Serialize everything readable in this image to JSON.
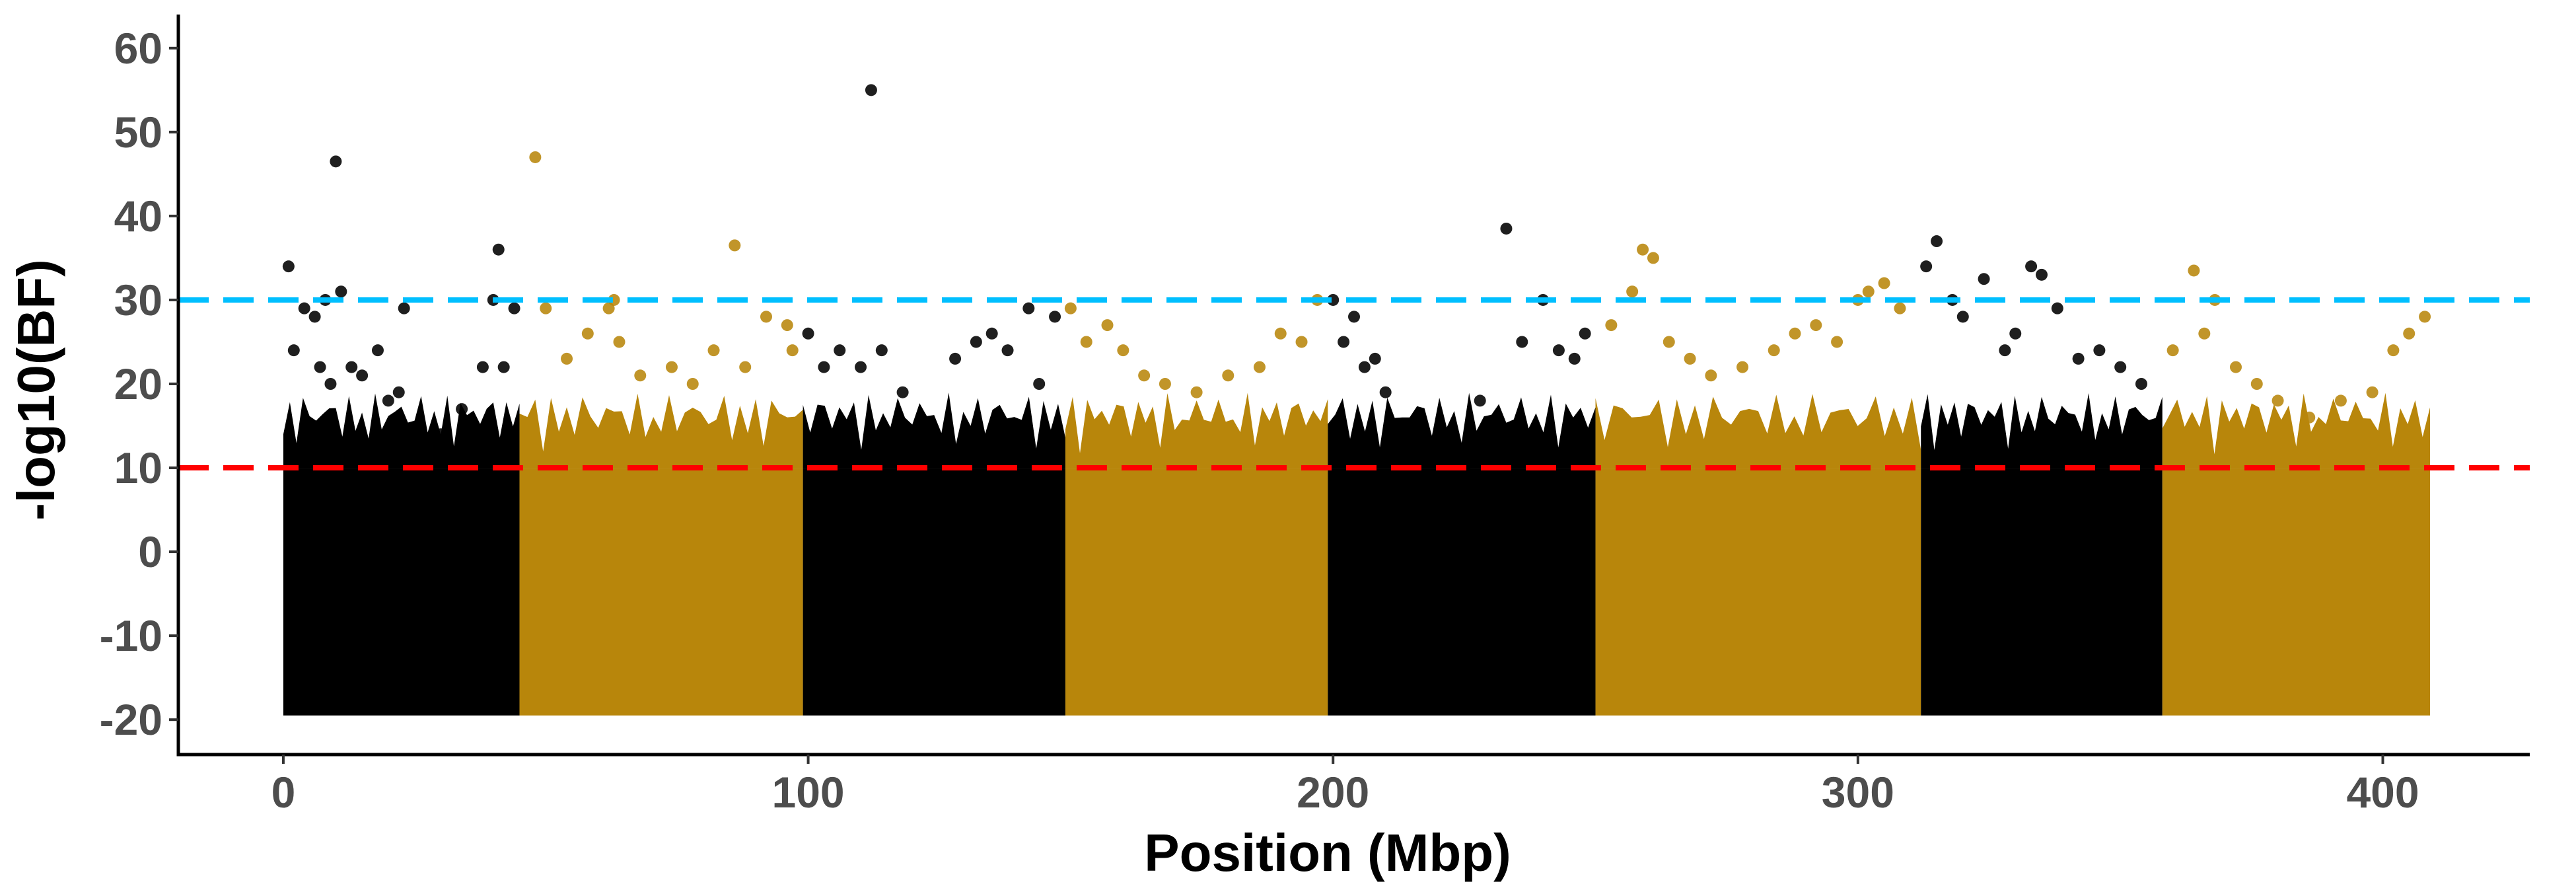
{
  "chart_data": {
    "type": "scatter",
    "title": "",
    "xlabel": "Position (Mbp)",
    "ylabel": "-log10(BF)",
    "xlim": [
      -20,
      428
    ],
    "ylim": [
      -24,
      64
    ],
    "x_ticks": [
      0,
      100,
      200,
      300,
      400
    ],
    "y_ticks": [
      -20,
      -10,
      0,
      10,
      20,
      30,
      40,
      50,
      60
    ],
    "grid": false,
    "legend": "none",
    "colors": {
      "dark": "#000000",
      "gold": "#b8860b",
      "threshold_high": "#00bfff",
      "threshold_low": "#ff0000"
    },
    "thresholds": [
      {
        "y": 30,
        "color": "#00bfff",
        "style": "dashed"
      },
      {
        "y": 10,
        "color": "#ff0000",
        "style": "dashed"
      }
    ],
    "chromosomes": [
      {
        "start": 0,
        "end": 45,
        "color": "dark"
      },
      {
        "start": 45,
        "end": 99,
        "color": "gold"
      },
      {
        "start": 99,
        "end": 149,
        "color": "dark"
      },
      {
        "start": 149,
        "end": 199,
        "color": "gold"
      },
      {
        "start": 199,
        "end": 250,
        "color": "dark"
      },
      {
        "start": 250,
        "end": 312,
        "color": "gold"
      },
      {
        "start": 312,
        "end": 358,
        "color": "dark"
      },
      {
        "start": 358,
        "end": 409,
        "color": "gold"
      }
    ],
    "series": [
      {
        "color": "dark",
        "points": [
          [
            1,
            34
          ],
          [
            2,
            24
          ],
          [
            4,
            29
          ],
          [
            6,
            28
          ],
          [
            7,
            22
          ],
          [
            8,
            30
          ],
          [
            9,
            20
          ],
          [
            10,
            46.5
          ],
          [
            11,
            31
          ],
          [
            13,
            22
          ],
          [
            15,
            21
          ],
          [
            18,
            24
          ],
          [
            20,
            18
          ],
          [
            22,
            19
          ],
          [
            23,
            29
          ],
          [
            26,
            15
          ],
          [
            30,
            14
          ],
          [
            34,
            17
          ],
          [
            38,
            22
          ],
          [
            40,
            30
          ],
          [
            41,
            36
          ],
          [
            42,
            22
          ],
          [
            44,
            29
          ],
          [
            100,
            26
          ],
          [
            103,
            22
          ],
          [
            106,
            24
          ],
          [
            110,
            22
          ],
          [
            112,
            55
          ],
          [
            114,
            24
          ],
          [
            118,
            19
          ],
          [
            122,
            14
          ],
          [
            128,
            23
          ],
          [
            132,
            25
          ],
          [
            135,
            26
          ],
          [
            138,
            24
          ],
          [
            142,
            29
          ],
          [
            144,
            20
          ],
          [
            147,
            28
          ],
          [
            200,
            30
          ],
          [
            202,
            25
          ],
          [
            204,
            28
          ],
          [
            206,
            22
          ],
          [
            208,
            23
          ],
          [
            210,
            19
          ],
          [
            213,
            15
          ],
          [
            217,
            12
          ],
          [
            220,
            13
          ],
          [
            225,
            10
          ],
          [
            228,
            18
          ],
          [
            233,
            38.5
          ],
          [
            236,
            25
          ],
          [
            240,
            30
          ],
          [
            243,
            24
          ],
          [
            246,
            23
          ],
          [
            248,
            26
          ],
          [
            313,
            34
          ],
          [
            315,
            37
          ],
          [
            318,
            30
          ],
          [
            320,
            28
          ],
          [
            324,
            32.5
          ],
          [
            328,
            24
          ],
          [
            330,
            26
          ],
          [
            333,
            34
          ],
          [
            335,
            33
          ],
          [
            338,
            29
          ],
          [
            342,
            23
          ],
          [
            346,
            24
          ],
          [
            350,
            22
          ],
          [
            354,
            20
          ]
        ]
      },
      {
        "color": "gold",
        "points": [
          [
            48,
            47
          ],
          [
            50,
            29
          ],
          [
            54,
            23
          ],
          [
            58,
            26
          ],
          [
            62,
            29
          ],
          [
            63,
            30
          ],
          [
            64,
            25
          ],
          [
            68,
            21
          ],
          [
            74,
            22
          ],
          [
            78,
            20
          ],
          [
            82,
            24
          ],
          [
            86,
            36.5
          ],
          [
            88,
            22
          ],
          [
            92,
            28
          ],
          [
            96,
            27
          ],
          [
            97,
            24
          ],
          [
            150,
            29
          ],
          [
            153,
            25
          ],
          [
            157,
            27
          ],
          [
            160,
            24
          ],
          [
            164,
            21
          ],
          [
            168,
            20
          ],
          [
            174,
            19
          ],
          [
            180,
            21
          ],
          [
            186,
            22
          ],
          [
            190,
            26
          ],
          [
            194,
            25
          ],
          [
            197,
            30
          ],
          [
            253,
            27
          ],
          [
            257,
            31
          ],
          [
            259,
            36
          ],
          [
            261,
            35
          ],
          [
            264,
            25
          ],
          [
            268,
            23
          ],
          [
            272,
            21
          ],
          [
            278,
            22
          ],
          [
            284,
            24
          ],
          [
            288,
            26
          ],
          [
            292,
            27
          ],
          [
            296,
            25
          ],
          [
            300,
            30
          ],
          [
            302,
            31
          ],
          [
            305,
            32
          ],
          [
            308,
            29
          ],
          [
            360,
            24
          ],
          [
            364,
            33.5
          ],
          [
            366,
            26
          ],
          [
            368,
            30
          ],
          [
            372,
            22
          ],
          [
            376,
            20
          ],
          [
            380,
            18
          ],
          [
            386,
            16
          ],
          [
            392,
            18
          ],
          [
            398,
            19
          ],
          [
            402,
            24
          ],
          [
            405,
            26
          ],
          [
            408,
            28
          ]
        ]
      }
    ]
  }
}
